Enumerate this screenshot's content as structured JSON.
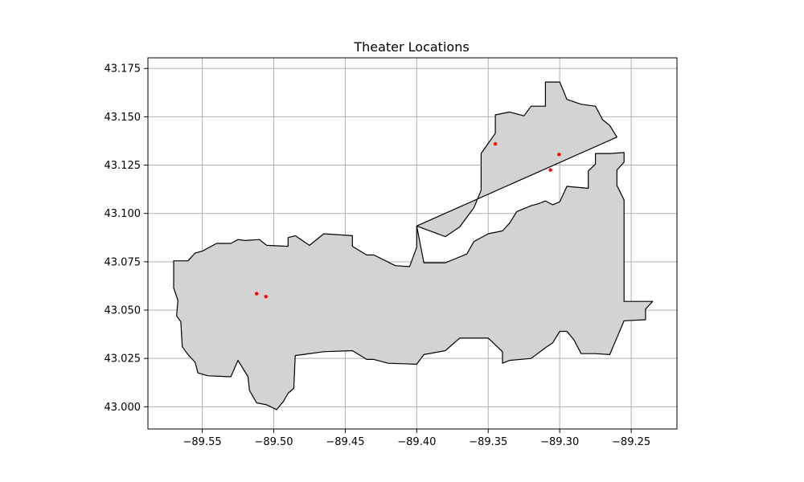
{
  "chart_data": {
    "type": "scatter",
    "title": "Theater Locations",
    "xlabel": "",
    "ylabel": "",
    "xlim": [
      -89.588,
      -89.218
    ],
    "ylim": [
      42.9885,
      43.1805
    ],
    "x_ticks": [
      -89.55,
      -89.5,
      -89.45,
      -89.4,
      -89.35,
      -89.3,
      -89.25
    ],
    "x_tick_labels": [
      "−89.55",
      "−89.50",
      "−89.45",
      "−89.40",
      "−89.35",
      "−89.30",
      "−89.25"
    ],
    "y_ticks": [
      43.0,
      43.025,
      43.05,
      43.075,
      43.1,
      43.125,
      43.15,
      43.175
    ],
    "y_tick_labels": [
      "43.000",
      "43.025",
      "43.050",
      "43.075",
      "43.100",
      "43.125",
      "43.150",
      "43.175"
    ],
    "grid": true,
    "boundary": [
      [
        -89.4,
        43.0935
      ],
      [
        -89.4,
        43.0825
      ],
      [
        -89.405,
        43.0725
      ],
      [
        -89.415,
        43.073
      ],
      [
        -89.43,
        43.0785
      ],
      [
        -89.435,
        43.0785
      ],
      [
        -89.445,
        43.083
      ],
      [
        -89.445,
        43.0885
      ],
      [
        -89.465,
        43.0895
      ],
      [
        -89.475,
        43.0835
      ],
      [
        -89.485,
        43.0885
      ],
      [
        -89.49,
        43.0875
      ],
      [
        -89.49,
        43.083
      ],
      [
        -89.505,
        43.0835
      ],
      [
        -89.51,
        43.0865
      ],
      [
        -89.52,
        43.086
      ],
      [
        -89.525,
        43.0865
      ],
      [
        -89.53,
        43.0845
      ],
      [
        -89.54,
        43.0845
      ],
      [
        -89.55,
        43.0805
      ],
      [
        -89.555,
        43.0795
      ],
      [
        -89.56,
        43.0755
      ],
      [
        -89.57,
        43.0755
      ],
      [
        -89.57,
        43.0615
      ],
      [
        -89.567,
        43.055
      ],
      [
        -89.568,
        43.047
      ],
      [
        -89.565,
        43.044
      ],
      [
        -89.564,
        43.031
      ],
      [
        -89.56,
        43.027
      ],
      [
        -89.555,
        43.023
      ],
      [
        -89.553,
        43.0175
      ],
      [
        -89.546,
        43.016
      ],
      [
        -89.53,
        43.0155
      ],
      [
        -89.525,
        43.024
      ],
      [
        -89.518,
        43.0155
      ],
      [
        -89.517,
        43.0085
      ],
      [
        -89.512,
        43.002
      ],
      [
        -89.505,
        43.001
      ],
      [
        -89.498,
        42.9985
      ],
      [
        -89.493,
        43.003
      ],
      [
        -89.49,
        43.007
      ],
      [
        -89.486,
        43.0095
      ],
      [
        -89.485,
        43.0265
      ],
      [
        -89.465,
        43.0285
      ],
      [
        -89.445,
        43.029
      ],
      [
        -89.435,
        43.0245
      ],
      [
        -89.43,
        43.0245
      ],
      [
        -89.42,
        43.0225
      ],
      [
        -89.4,
        43.022
      ],
      [
        -89.395,
        43.027
      ],
      [
        -89.38,
        43.029
      ],
      [
        -89.37,
        43.0355
      ],
      [
        -89.35,
        43.0355
      ],
      [
        -89.34,
        43.0285
      ],
      [
        -89.34,
        43.0225
      ],
      [
        -89.335,
        43.024
      ],
      [
        -89.32,
        43.025
      ],
      [
        -89.31,
        43.0305
      ],
      [
        -89.305,
        43.033
      ],
      [
        -89.3,
        43.039
      ],
      [
        -89.295,
        43.039
      ],
      [
        -89.29,
        43.0345
      ],
      [
        -89.285,
        43.0275
      ],
      [
        -89.275,
        43.0275
      ],
      [
        -89.265,
        43.027
      ],
      [
        -89.255,
        43.0445
      ],
      [
        -89.24,
        43.045
      ],
      [
        -89.24,
        43.0505
      ],
      [
        -89.235,
        43.0545
      ],
      [
        -89.255,
        43.0545
      ],
      [
        -89.255,
        43.107
      ],
      [
        -89.26,
        43.1145
      ],
      [
        -89.26,
        43.1225
      ],
      [
        -89.255,
        43.1265
      ],
      [
        -89.255,
        43.1315
      ],
      [
        -89.265,
        43.131
      ],
      [
        -89.275,
        43.131
      ],
      [
        -89.275,
        43.1255
      ],
      [
        -89.28,
        43.122
      ],
      [
        -89.28,
        43.113
      ],
      [
        -89.295,
        43.114
      ],
      [
        -89.3,
        43.106
      ],
      [
        -89.305,
        43.1045
      ],
      [
        -89.31,
        43.1065
      ],
      [
        -89.315,
        43.105
      ],
      [
        -89.32,
        43.104
      ],
      [
        -89.33,
        43.101
      ],
      [
        -89.335,
        43.095
      ],
      [
        -89.34,
        43.091
      ],
      [
        -89.35,
        43.0895
      ],
      [
        -89.36,
        43.0855
      ],
      [
        -89.365,
        43.079
      ],
      [
        -89.375,
        43.076
      ],
      [
        -89.38,
        43.0745
      ],
      [
        -89.395,
        43.0745
      ],
      [
        -89.4,
        43.0935
      ]
    ],
    "boundary_continued": [
      [
        -89.38,
        43.088
      ],
      [
        -89.37,
        43.093
      ],
      [
        -89.365,
        43.098
      ],
      [
        -89.36,
        43.103
      ],
      [
        -89.355,
        43.112
      ],
      [
        -89.355,
        43.131
      ],
      [
        -89.345,
        43.1415
      ],
      [
        -89.345,
        43.151
      ],
      [
        -89.335,
        43.1525
      ],
      [
        -89.325,
        43.1505
      ],
      [
        -89.32,
        43.1555
      ],
      [
        -89.31,
        43.1555
      ],
      [
        -89.31,
        43.168
      ],
      [
        -89.3,
        43.168
      ],
      [
        -89.295,
        43.159
      ],
      [
        -89.285,
        43.1565
      ],
      [
        -89.275,
        43.1555
      ],
      [
        -89.27,
        43.1485
      ],
      [
        -89.265,
        43.1455
      ],
      [
        -89.26,
        43.1395
      ]
    ],
    "series": [
      {
        "x": [
          -89.345,
          -89.3005,
          -89.3065,
          -89.512,
          -89.5055
        ],
        "y": [
          43.136,
          43.1305,
          43.1225,
          43.0585,
          43.057
        ],
        "color": "#ff0000"
      }
    ]
  },
  "colors": {
    "fill": "#d3d3d3",
    "edge": "#000000",
    "point": "#ff0000",
    "grid": "#b0b0b0"
  }
}
